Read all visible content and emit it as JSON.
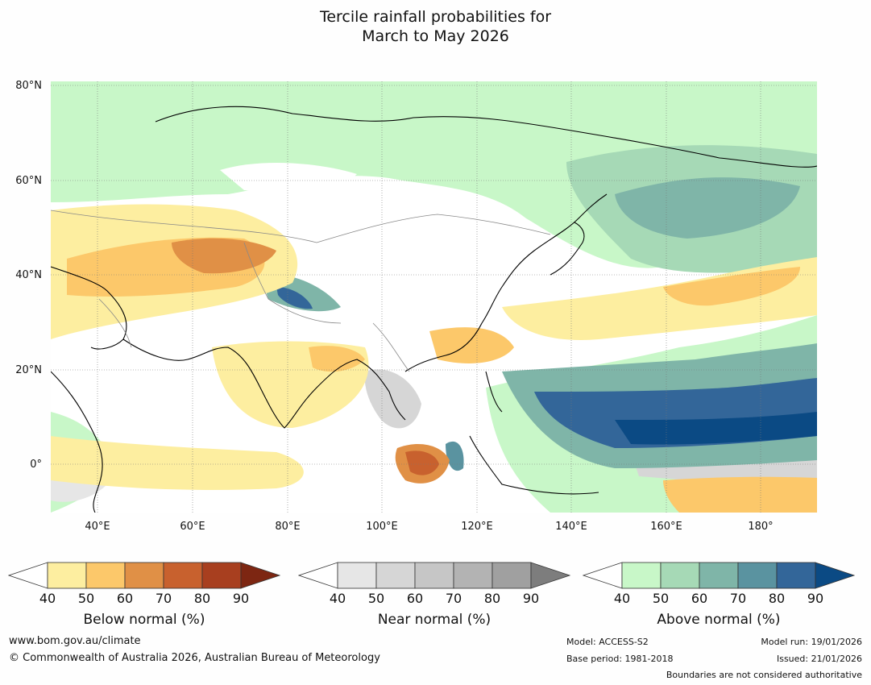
{
  "title": {
    "line1": "Tercile rainfall probabilities for",
    "line2": "March to May 2026"
  },
  "map": {
    "latitude_labels": [
      "80°N",
      "60°N",
      "40°N",
      "20°N",
      "0°"
    ],
    "longitude_labels": [
      "40°E",
      "60°E",
      "80°E",
      "100°E",
      "120°E",
      "140°E",
      "160°E",
      "180°"
    ],
    "colors": {
      "below": [
        "#fdeea0",
        "#fcc86a",
        "#e09046",
        "#c8612e",
        "#a83f1f",
        "#7d2612"
      ],
      "near": [
        "#e6e6e6",
        "#d6d6d6",
        "#c6c6c6",
        "#b3b3b3",
        "#a0a0a0",
        "#7d7d7d"
      ],
      "above": [
        "#c8f7c8",
        "#a6d9b6",
        "#7fb5a8",
        "#5a93a0",
        "#336699",
        "#0b4a84"
      ],
      "coast": "#000000",
      "border": "#888888"
    }
  },
  "colorbars": [
    {
      "label": "Below normal (%)",
      "ticks": [
        "40",
        "50",
        "60",
        "70",
        "80",
        "90"
      ]
    },
    {
      "label": "Near normal (%)",
      "ticks": [
        "40",
        "50",
        "60",
        "70",
        "80",
        "90"
      ]
    },
    {
      "label": "Above normal (%)",
      "ticks": [
        "40",
        "50",
        "60",
        "70",
        "80",
        "90"
      ]
    }
  ],
  "footer": {
    "website": "www.bom.gov.au/climate",
    "copyright": "© Commonwealth of Australia 2026, Australian Bureau of Meteorology",
    "model": "Model: ACCESS-S2",
    "base_period": "Base period: 1981-2018",
    "model_run": "Model run: 19/01/2026",
    "issued": "Issued: 21/01/2026",
    "disclaimer": "Boundaries are not considered authoritative"
  }
}
